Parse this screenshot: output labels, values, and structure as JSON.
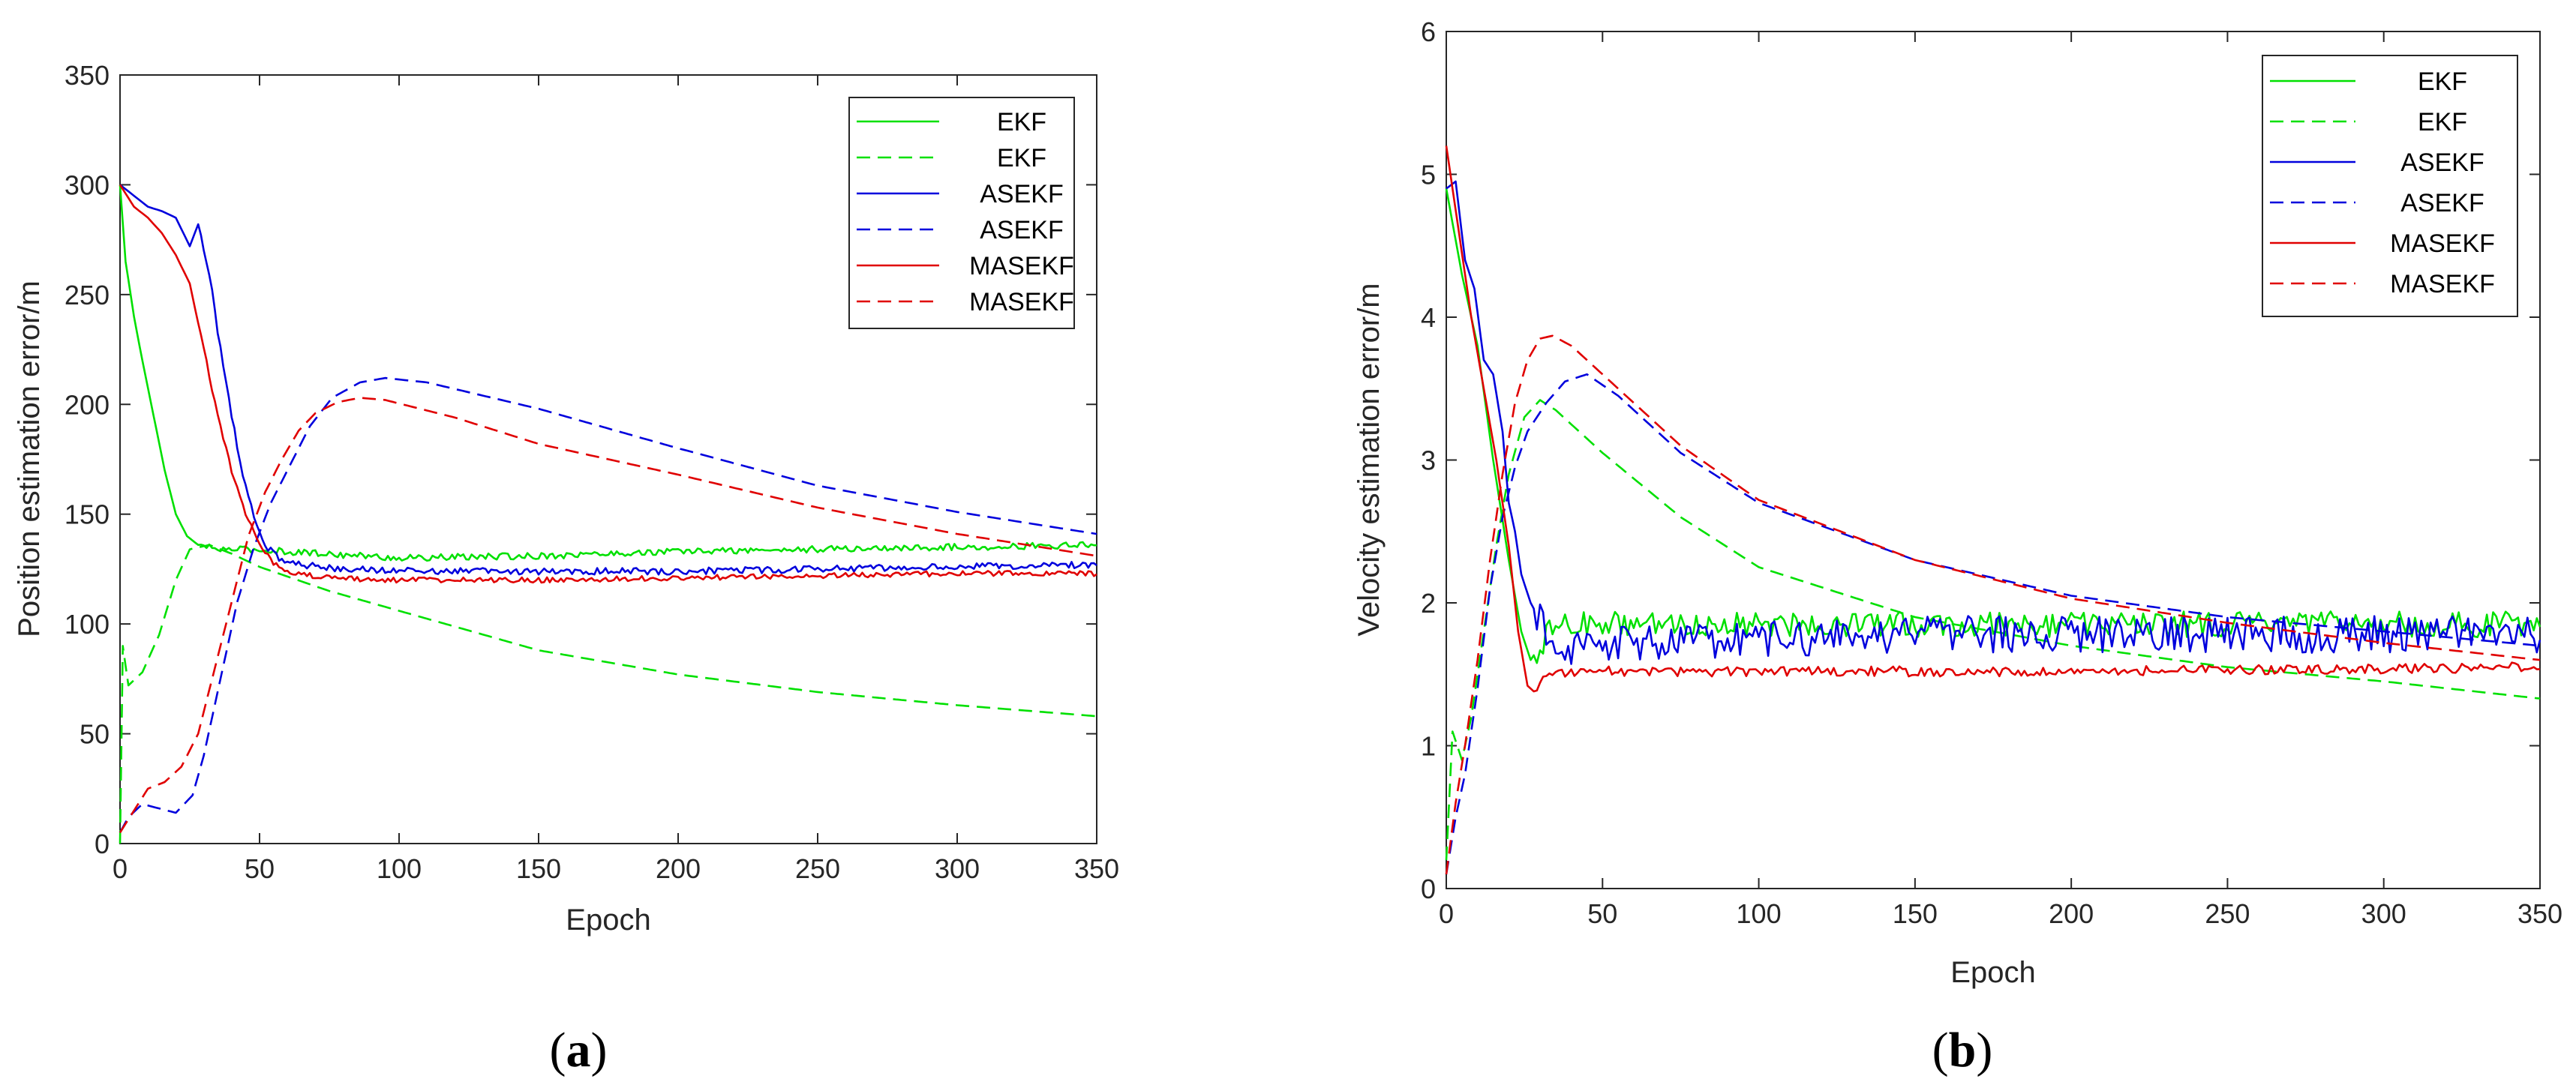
{
  "figure_captions": [
    {
      "open": "(",
      "letter": "a",
      "close": ")"
    },
    {
      "open": "(",
      "letter": "b",
      "close": ")"
    }
  ],
  "colors": {
    "EKF": "#00e000",
    "ASEKF": "#0000dd",
    "MASEKF": "#e00000"
  },
  "chart_data": [
    {
      "type": "line",
      "title": "",
      "xlabel": "Epoch",
      "ylabel": "Position estimation error/m",
      "xlim": [
        0,
        350
      ],
      "ylim": [
        0,
        350
      ],
      "xticks": [
        0,
        50,
        100,
        150,
        200,
        250,
        300,
        350
      ],
      "yticks": [
        0,
        50,
        100,
        150,
        200,
        250,
        300,
        350
      ],
      "legend_position": "top-right",
      "series": [
        {
          "name": "EKF",
          "style": "solid",
          "color": "#00e000",
          "noise": 1.5,
          "points": [
            [
              0,
              300
            ],
            [
              2,
              265
            ],
            [
              5,
              240
            ],
            [
              8,
              220
            ],
            [
              12,
              195
            ],
            [
              16,
              170
            ],
            [
              20,
              150
            ],
            [
              24,
              140
            ],
            [
              28,
              136
            ],
            [
              35,
              134
            ],
            [
              45,
              134
            ],
            [
              60,
              133
            ],
            [
              100,
              130
            ],
            [
              150,
              131
            ],
            [
              200,
              133
            ],
            [
              250,
              134
            ],
            [
              300,
              135
            ],
            [
              350,
              136
            ]
          ]
        },
        {
          "name": "EKF",
          "style": "dashed",
          "color": "#00e000",
          "noise": 0,
          "points": [
            [
              0,
              0
            ],
            [
              1,
              90
            ],
            [
              3,
              72
            ],
            [
              8,
              78
            ],
            [
              14,
              95
            ],
            [
              20,
              120
            ],
            [
              25,
              134
            ],
            [
              32,
              136
            ],
            [
              40,
              132
            ],
            [
              50,
              126
            ],
            [
              75,
              115
            ],
            [
              100,
              106
            ],
            [
              150,
              88
            ],
            [
              200,
              77
            ],
            [
              250,
              69
            ],
            [
              300,
              63
            ],
            [
              350,
              58
            ]
          ]
        },
        {
          "name": "ASEKF",
          "style": "solid",
          "color": "#0000dd",
          "noise": 1.5,
          "points": [
            [
              0,
              300
            ],
            [
              5,
              295
            ],
            [
              10,
              290
            ],
            [
              15,
              288
            ],
            [
              20,
              285
            ],
            [
              25,
              272
            ],
            [
              28,
              282
            ],
            [
              32,
              260
            ],
            [
              36,
              225
            ],
            [
              40,
              195
            ],
            [
              44,
              168
            ],
            [
              48,
              148
            ],
            [
              52,
              136
            ],
            [
              57,
              130
            ],
            [
              65,
              127
            ],
            [
              80,
              125
            ],
            [
              120,
              124
            ],
            [
              200,
              124
            ],
            [
              300,
              126
            ],
            [
              350,
              127
            ]
          ]
        },
        {
          "name": "ASEKF",
          "style": "dashed",
          "color": "#0000dd",
          "noise": 0,
          "points": [
            [
              0,
              5
            ],
            [
              3,
              12
            ],
            [
              8,
              18
            ],
            [
              14,
              16
            ],
            [
              20,
              14
            ],
            [
              26,
              22
            ],
            [
              30,
              40
            ],
            [
              36,
              75
            ],
            [
              42,
              110
            ],
            [
              48,
              135
            ],
            [
              54,
              155
            ],
            [
              60,
              170
            ],
            [
              68,
              190
            ],
            [
              76,
              203
            ],
            [
              86,
              210
            ],
            [
              95,
              212
            ],
            [
              110,
              210
            ],
            [
              150,
              198
            ],
            [
              200,
              180
            ],
            [
              250,
              163
            ],
            [
              300,
              151
            ],
            [
              350,
              141
            ]
          ]
        },
        {
          "name": "MASEKF",
          "style": "solid",
          "color": "#e00000",
          "noise": 1.2,
          "points": [
            [
              0,
              300
            ],
            [
              5,
              290
            ],
            [
              10,
              285
            ],
            [
              15,
              278
            ],
            [
              20,
              268
            ],
            [
              25,
              255
            ],
            [
              30,
              225
            ],
            [
              35,
              195
            ],
            [
              40,
              170
            ],
            [
              45,
              150
            ],
            [
              50,
              136
            ],
            [
              55,
              128
            ],
            [
              62,
              123
            ],
            [
              75,
              121
            ],
            [
              100,
              120
            ],
            [
              150,
              120
            ],
            [
              200,
              121
            ],
            [
              250,
              122
            ],
            [
              300,
              123
            ],
            [
              350,
              123
            ]
          ]
        },
        {
          "name": "MASEKF",
          "style": "dashed",
          "color": "#e00000",
          "noise": 0,
          "points": [
            [
              0,
              5
            ],
            [
              5,
              15
            ],
            [
              10,
              25
            ],
            [
              16,
              28
            ],
            [
              22,
              35
            ],
            [
              28,
              50
            ],
            [
              34,
              80
            ],
            [
              40,
              110
            ],
            [
              46,
              140
            ],
            [
              52,
              160
            ],
            [
              58,
              175
            ],
            [
              64,
              188
            ],
            [
              70,
              196
            ],
            [
              78,
              201
            ],
            [
              86,
              203
            ],
            [
              95,
              202
            ],
            [
              120,
              194
            ],
            [
              150,
              182
            ],
            [
              200,
              168
            ],
            [
              250,
              153
            ],
            [
              300,
              141
            ],
            [
              350,
              131
            ]
          ]
        }
      ]
    },
    {
      "type": "line",
      "title": "",
      "xlabel": "Epoch",
      "ylabel": "Velocity estimation error/m",
      "xlim": [
        0,
        350
      ],
      "ylim": [
        0,
        6
      ],
      "xticks": [
        0,
        50,
        100,
        150,
        200,
        250,
        300,
        350
      ],
      "yticks": [
        0,
        1,
        2,
        3,
        4,
        5,
        6
      ],
      "legend_position": "top-right",
      "series": [
        {
          "name": "EKF",
          "style": "solid",
          "color": "#00e000",
          "noise": 0.09,
          "points": [
            [
              0,
              4.9
            ],
            [
              5,
              4.3
            ],
            [
              10,
              3.8
            ],
            [
              15,
              3.0
            ],
            [
              20,
              2.3
            ],
            [
              24,
              1.8
            ],
            [
              27,
              1.6
            ],
            [
              30,
              1.7
            ],
            [
              35,
              1.85
            ],
            [
              50,
              1.85
            ],
            [
              100,
              1.85
            ],
            [
              150,
              1.85
            ],
            [
              200,
              1.85
            ],
            [
              250,
              1.85
            ],
            [
              300,
              1.85
            ],
            [
              350,
              1.85
            ]
          ]
        },
        {
          "name": "EKF",
          "style": "dashed",
          "color": "#00e000",
          "noise": 0,
          "points": [
            [
              0,
              0.2
            ],
            [
              2,
              1.1
            ],
            [
              5,
              0.9
            ],
            [
              8,
              1.2
            ],
            [
              12,
              1.8
            ],
            [
              16,
              2.4
            ],
            [
              20,
              2.9
            ],
            [
              25,
              3.3
            ],
            [
              30,
              3.42
            ],
            [
              35,
              3.35
            ],
            [
              50,
              3.05
            ],
            [
              75,
              2.6
            ],
            [
              100,
              2.25
            ],
            [
              150,
              1.9
            ],
            [
              200,
              1.7
            ],
            [
              250,
              1.55
            ],
            [
              300,
              1.45
            ],
            [
              350,
              1.33
            ]
          ]
        },
        {
          "name": "ASEKF",
          "style": "solid",
          "color": "#0000dd",
          "noise": 0.13,
          "points": [
            [
              0,
              4.9
            ],
            [
              3,
              4.95
            ],
            [
              6,
              4.4
            ],
            [
              9,
              4.2
            ],
            [
              12,
              3.7
            ],
            [
              15,
              3.6
            ],
            [
              18,
              3.2
            ],
            [
              20,
              2.7
            ],
            [
              22,
              2.5
            ],
            [
              24,
              2.2
            ],
            [
              27,
              2.0
            ],
            [
              32,
              1.8
            ],
            [
              40,
              1.7
            ],
            [
              60,
              1.72
            ],
            [
              100,
              1.75
            ],
            [
              150,
              1.78
            ],
            [
              200,
              1.78
            ],
            [
              250,
              1.78
            ],
            [
              300,
              1.78
            ],
            [
              350,
              1.78
            ]
          ]
        },
        {
          "name": "ASEKF",
          "style": "dashed",
          "color": "#0000dd",
          "noise": 0,
          "points": [
            [
              0,
              0.1
            ],
            [
              3,
              0.5
            ],
            [
              6,
              0.8
            ],
            [
              10,
              1.4
            ],
            [
              14,
              2.1
            ],
            [
              18,
              2.6
            ],
            [
              22,
              2.95
            ],
            [
              26,
              3.2
            ],
            [
              32,
              3.4
            ],
            [
              38,
              3.55
            ],
            [
              45,
              3.6
            ],
            [
              55,
              3.45
            ],
            [
              75,
              3.05
            ],
            [
              100,
              2.7
            ],
            [
              150,
              2.3
            ],
            [
              200,
              2.05
            ],
            [
              250,
              1.9
            ],
            [
              300,
              1.8
            ],
            [
              350,
              1.7
            ]
          ]
        },
        {
          "name": "MASEKF",
          "style": "solid",
          "color": "#e00000",
          "noise": 0.035,
          "points": [
            [
              0,
              5.2
            ],
            [
              4,
              4.6
            ],
            [
              8,
              4.0
            ],
            [
              12,
              3.5
            ],
            [
              16,
              3.0
            ],
            [
              20,
              2.4
            ],
            [
              23,
              1.8
            ],
            [
              26,
              1.42
            ],
            [
              28,
              1.38
            ],
            [
              32,
              1.5
            ],
            [
              50,
              1.52
            ],
            [
              100,
              1.52
            ],
            [
              150,
              1.52
            ],
            [
              200,
              1.52
            ],
            [
              250,
              1.53
            ],
            [
              300,
              1.54
            ],
            [
              350,
              1.55
            ]
          ]
        },
        {
          "name": "MASEKF",
          "style": "dashed",
          "color": "#e00000",
          "noise": 0,
          "points": [
            [
              0,
              0.1
            ],
            [
              3,
              0.6
            ],
            [
              6,
              1.0
            ],
            [
              10,
              1.6
            ],
            [
              14,
              2.3
            ],
            [
              18,
              2.9
            ],
            [
              22,
              3.4
            ],
            [
              26,
              3.7
            ],
            [
              30,
              3.85
            ],
            [
              34,
              3.87
            ],
            [
              40,
              3.8
            ],
            [
              50,
              3.6
            ],
            [
              75,
              3.1
            ],
            [
              100,
              2.72
            ],
            [
              150,
              2.3
            ],
            [
              200,
              2.03
            ],
            [
              250,
              1.86
            ],
            [
              300,
              1.72
            ],
            [
              350,
              1.6
            ]
          ]
        }
      ]
    }
  ]
}
